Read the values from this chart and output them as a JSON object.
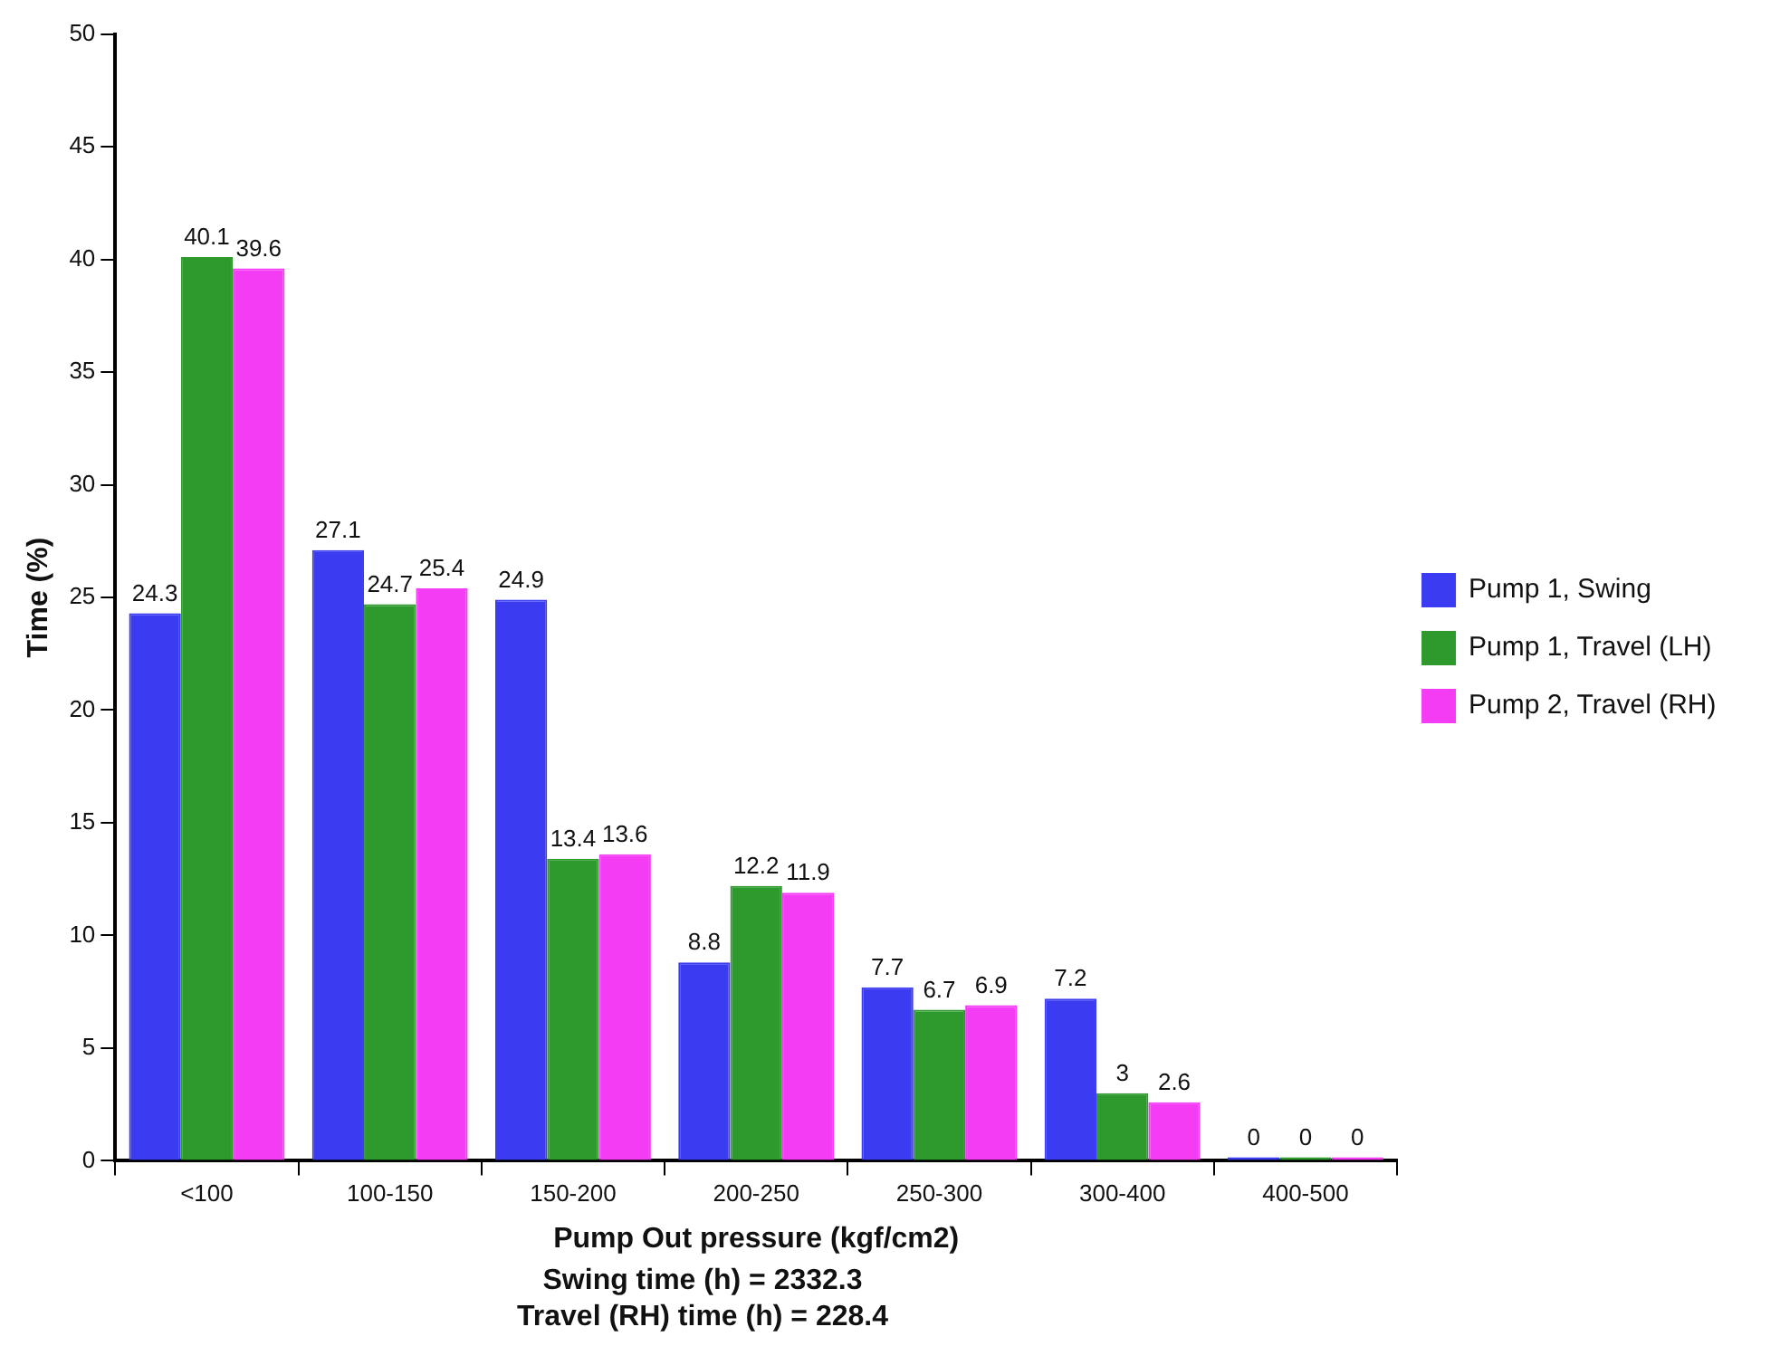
{
  "chart_data": {
    "type": "bar",
    "xlabel": "Pump Out pressure (kgf/cm2)",
    "ylabel": "Time (%)",
    "categories": [
      "<100",
      "100-150",
      "150-200",
      "200-250",
      "250-300",
      "300-400",
      "400-500"
    ],
    "series": [
      {
        "name": "Pump 1, Swing",
        "color": "#3b3bf2",
        "values": [
          24.3,
          27.1,
          24.9,
          8.8,
          7.7,
          7.2,
          0
        ]
      },
      {
        "name": "Pump 1, Travel (LH)",
        "color": "#2e9a2e",
        "values": [
          40.1,
          24.7,
          13.4,
          12.2,
          6.7,
          3,
          0
        ]
      },
      {
        "name": "Pump 2, Travel (RH)",
        "color": "#f53cf5",
        "values": [
          39.6,
          25.4,
          13.6,
          11.9,
          6.9,
          2.6,
          0
        ]
      }
    ],
    "ylim": [
      0,
      50
    ],
    "yticks": [
      0,
      5,
      10,
      15,
      20,
      25,
      30,
      35,
      40,
      45,
      50
    ],
    "grid": false,
    "legend": "right",
    "data_labels": true,
    "annotations": [
      "Swing time (h) = 2332.3",
      "Travel (RH) time (h) = 228.4"
    ]
  }
}
